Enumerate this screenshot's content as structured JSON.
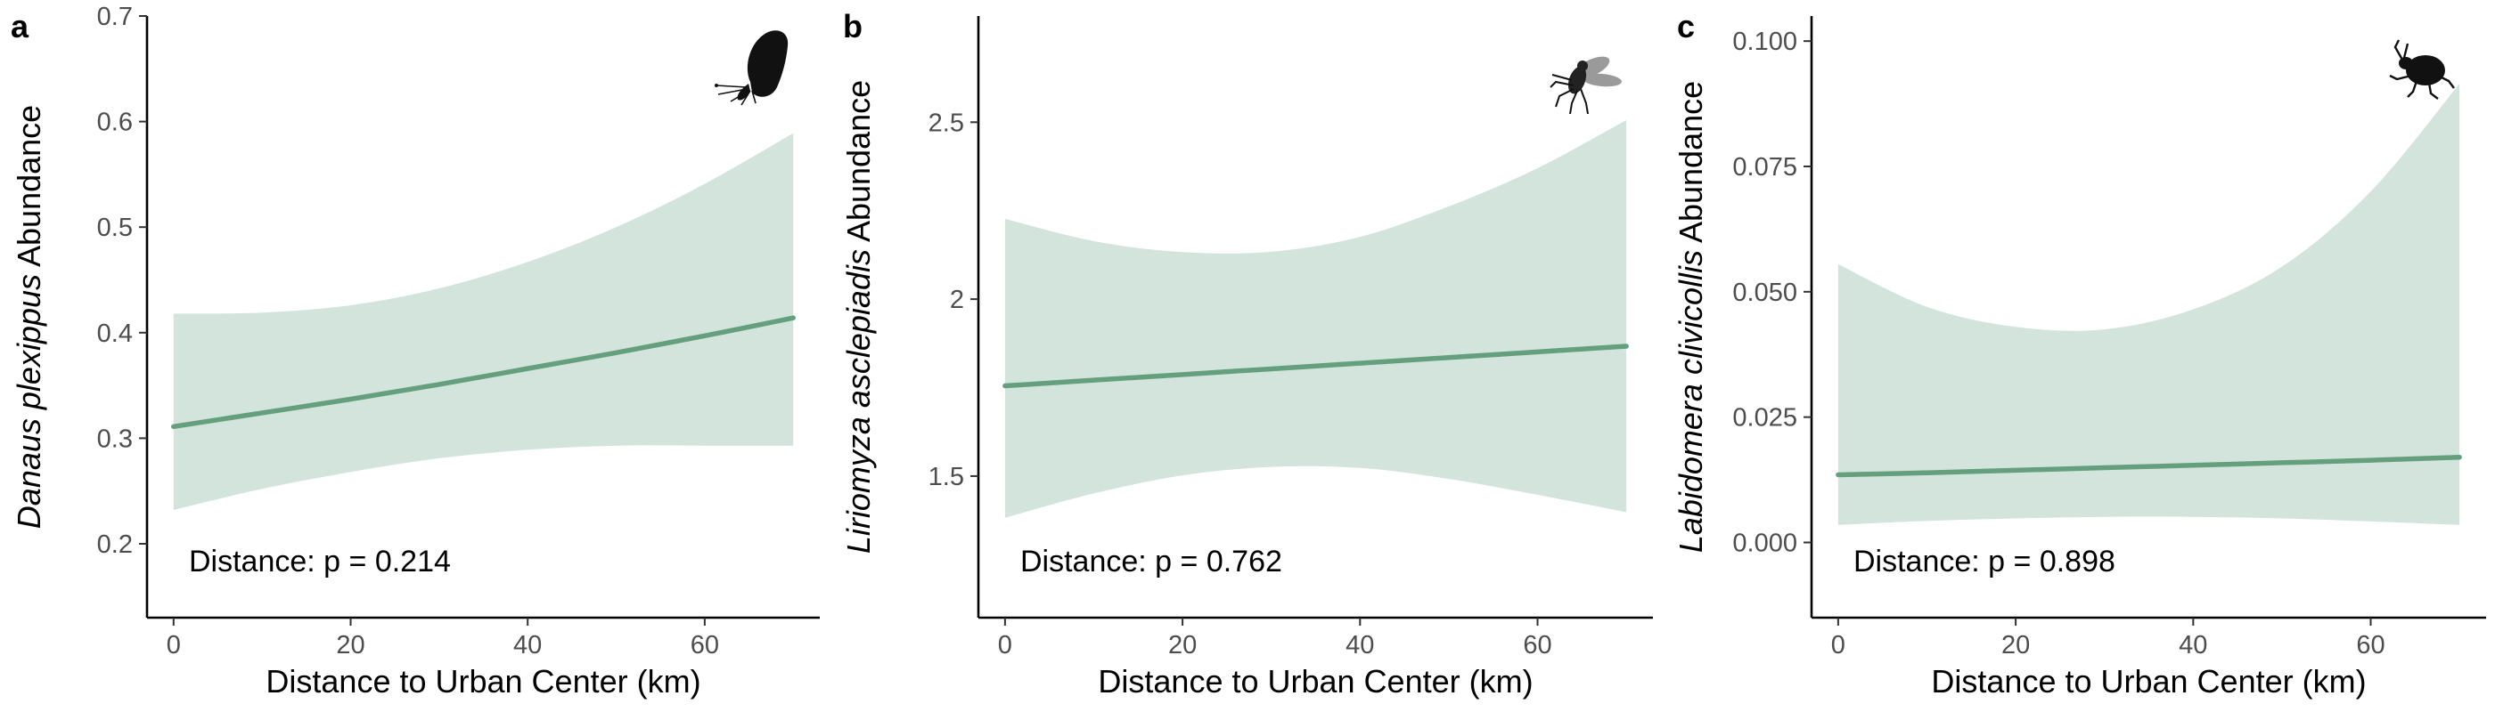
{
  "colors": {
    "ribbon": "#d3e4dd",
    "line": "#64a07e",
    "axis": "#000000",
    "tick_text": "#4d4d4d"
  },
  "chart_data": [
    {
      "type": "line",
      "panel_label": "a",
      "icon": "butterfly-icon",
      "ylabel_italic": "Danaus plexippus",
      "ylabel_rest": " Abundance",
      "xlabel": "Distance to Urban Center (km)",
      "annotation": "Distance: p = 0.214",
      "xlim": [
        -3,
        73
      ],
      "ylim": [
        0.13,
        0.7
      ],
      "x_ticks": [
        0,
        20,
        40,
        60
      ],
      "y_ticks": [
        0.2,
        0.3,
        0.4,
        0.5,
        0.6,
        0.7
      ],
      "grid": false,
      "x": [
        0,
        10,
        20,
        30,
        40,
        50,
        60,
        70
      ],
      "fit": [
        0.311,
        0.324,
        0.337,
        0.351,
        0.366,
        0.381,
        0.397,
        0.414
      ],
      "ci_lower": [
        0.232,
        0.252,
        0.268,
        0.281,
        0.289,
        0.293,
        0.293,
        0.293
      ],
      "ci_upper": [
        0.418,
        0.419,
        0.426,
        0.442,
        0.467,
        0.5,
        0.541,
        0.589
      ]
    },
    {
      "type": "line",
      "panel_label": "b",
      "icon": "fly-icon",
      "ylabel_italic": "Liriomyza asclepiadis",
      "ylabel_rest": " Abundance",
      "xlabel": "Distance to Urban Center (km)",
      "annotation": "Distance: p = 0.762",
      "xlim": [
        -3,
        73
      ],
      "ylim": [
        1.1,
        2.8
      ],
      "x_ticks": [
        0,
        20,
        40,
        60
      ],
      "y_ticks": [
        1.5,
        2.0,
        2.5
      ],
      "grid": false,
      "x": [
        0,
        10,
        20,
        30,
        40,
        50,
        60,
        70
      ],
      "fit": [
        1.755,
        1.771,
        1.787,
        1.803,
        1.819,
        1.835,
        1.851,
        1.867
      ],
      "ci_lower": [
        1.382,
        1.451,
        1.502,
        1.526,
        1.523,
        1.492,
        1.447,
        1.398
      ],
      "ci_upper": [
        2.227,
        2.164,
        2.133,
        2.134,
        2.176,
        2.262,
        2.37,
        2.506
      ]
    },
    {
      "type": "line",
      "panel_label": "c",
      "icon": "beetle-icon",
      "ylabel_italic": "Labidomera clivicollis",
      "ylabel_rest": " Abundance",
      "xlabel": "Distance to Urban Center (km)",
      "annotation": "Distance: p = 0.898",
      "xlim": [
        -3,
        73
      ],
      "ylim": [
        -0.015,
        0.105
      ],
      "x_ticks": [
        0,
        20,
        40,
        60
      ],
      "y_ticks": [
        0.0,
        0.025,
        0.05,
        0.075,
        0.1
      ],
      "y_tick_labels": [
        "0.000",
        "0.025",
        "0.050",
        "0.075",
        "0.100"
      ],
      "grid": false,
      "x": [
        0,
        10,
        20,
        30,
        40,
        50,
        60,
        70
      ],
      "fit": [
        0.0135,
        0.0139,
        0.0144,
        0.0149,
        0.0154,
        0.0159,
        0.0164,
        0.017
      ],
      "ci_lower": [
        0.0035,
        0.0043,
        0.0048,
        0.0051,
        0.0051,
        0.0048,
        0.0042,
        0.0035
      ],
      "ci_upper": [
        0.0555,
        0.047,
        0.043,
        0.0425,
        0.0465,
        0.055,
        0.07,
        0.0915
      ]
    }
  ]
}
